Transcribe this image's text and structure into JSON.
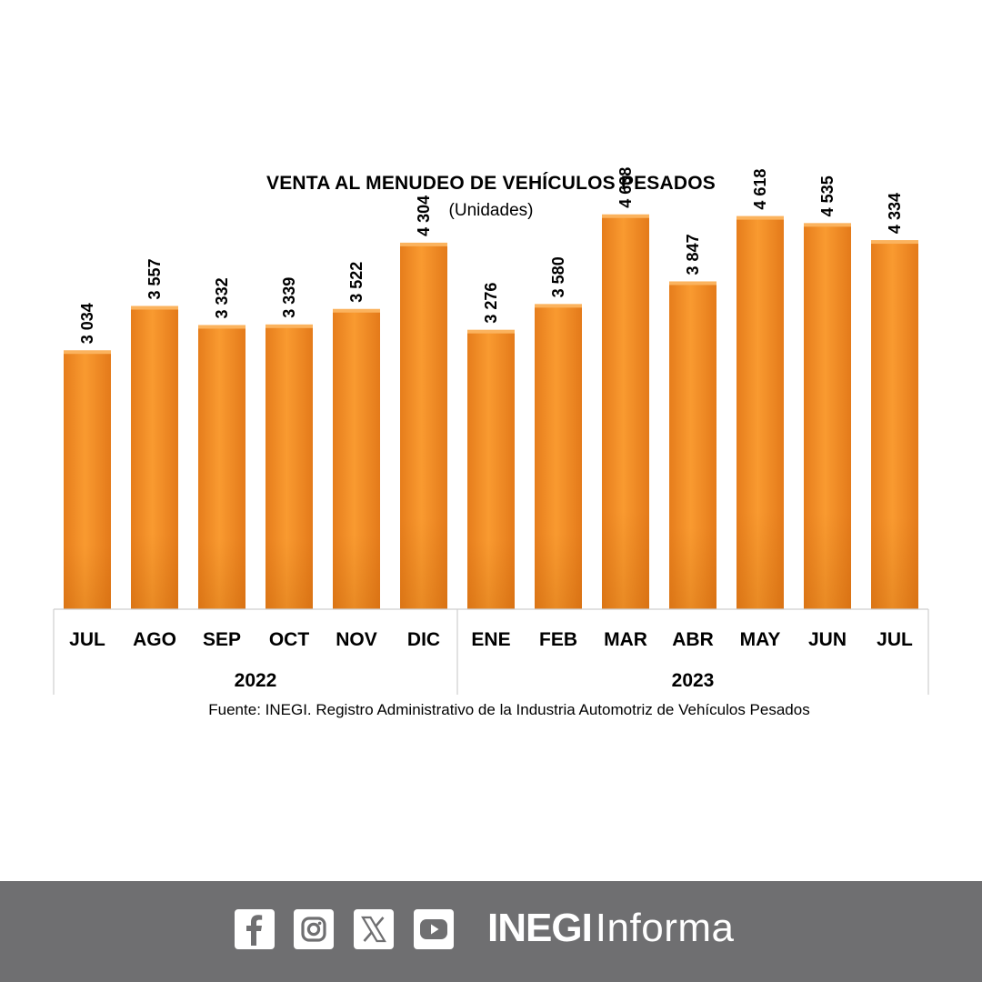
{
  "chart_data": {
    "type": "bar",
    "title": "Venta al menudeo de vehículos pesados",
    "subtitle": "(Unidades)",
    "categories": [
      "JUL",
      "AGO",
      "SEP",
      "OCT",
      "NOV",
      "DIC",
      "ENE",
      "FEB",
      "MAR",
      "ABR",
      "MAY",
      "JUN",
      "JUL"
    ],
    "values": [
      3034,
      3557,
      3332,
      3339,
      3522,
      4304,
      3276,
      3580,
      4638,
      3847,
      4618,
      4535,
      4334
    ],
    "value_labels": [
      "3 034",
      "3 557",
      "3 332",
      "3 339",
      "3 522",
      "4 304",
      "3 276",
      "3 580",
      "4 638",
      "3 847",
      "4 618",
      "4 535",
      "4 334"
    ],
    "groups": [
      {
        "label": "2022",
        "count": 6
      },
      {
        "label": "2023",
        "count": 7
      }
    ],
    "bar_color": "#f7962b",
    "ylim": [
      0,
      5000
    ],
    "grid": false,
    "legend": "none",
    "source": "Fuente: INEGI. Registro Administrativo de la Industria Automotriz de Vehículos Pesados"
  },
  "footer": {
    "social_icons": [
      "facebook-icon",
      "instagram-icon",
      "x-icon",
      "youtube-icon"
    ],
    "brand_bold": "INEGI",
    "brand_light": "Informa",
    "background_color": "#6f6f71"
  }
}
